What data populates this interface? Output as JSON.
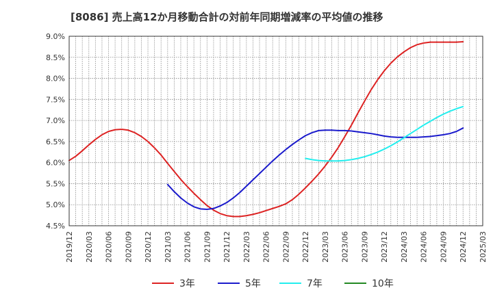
{
  "chart_data": {
    "type": "line",
    "title": "[8086]  売上高12か月移動合計の対前年同期増減率の平均値の推移",
    "xlabel": "",
    "ylabel": "",
    "x_ticks": [
      "2019/12",
      "2020/03",
      "2020/06",
      "2020/09",
      "2020/12",
      "2021/03",
      "2021/06",
      "2021/09",
      "2021/12",
      "2022/03",
      "2022/06",
      "2022/09",
      "2022/12",
      "2023/03",
      "2023/06",
      "2023/09",
      "2023/12",
      "2024/03",
      "2024/06",
      "2024/09",
      "2024/12",
      "2025/03"
    ],
    "y_ticks": [
      "4.5%",
      "5.0%",
      "5.5%",
      "6.0%",
      "6.5%",
      "7.0%",
      "7.5%",
      "8.0%",
      "8.5%",
      "9.0%"
    ],
    "ylim": [
      4.5,
      9.0
    ],
    "grid": true,
    "legend_position": "bottom",
    "series": [
      {
        "name": "3年",
        "color": "#dd2222",
        "x": [
          "2019/12",
          "2020/01",
          "2020/02",
          "2020/03",
          "2020/04",
          "2020/05",
          "2020/06",
          "2020/07",
          "2020/08",
          "2020/09",
          "2020/10",
          "2020/11",
          "2020/12",
          "2021/01",
          "2021/02",
          "2021/03",
          "2021/04",
          "2021/05",
          "2021/06",
          "2021/07",
          "2021/08",
          "2021/09",
          "2021/10",
          "2021/11",
          "2021/12",
          "2022/01",
          "2022/02",
          "2022/03",
          "2022/04",
          "2022/05",
          "2022/06",
          "2022/07",
          "2022/08",
          "2022/09",
          "2022/10",
          "2022/11",
          "2022/12",
          "2023/01",
          "2023/02",
          "2023/03",
          "2023/04",
          "2023/05",
          "2023/06",
          "2023/07",
          "2023/08",
          "2023/09",
          "2023/10",
          "2023/11",
          "2023/12",
          "2024/01",
          "2024/02",
          "2024/03",
          "2024/04",
          "2024/05",
          "2024/06",
          "2024/07",
          "2024/08",
          "2024/09",
          "2024/10",
          "2024/11",
          "2024/12"
        ],
        "values": [
          6.05,
          6.15,
          6.28,
          6.42,
          6.55,
          6.66,
          6.74,
          6.78,
          6.79,
          6.77,
          6.71,
          6.62,
          6.5,
          6.35,
          6.18,
          5.98,
          5.79,
          5.6,
          5.43,
          5.27,
          5.12,
          4.98,
          4.87,
          4.79,
          4.74,
          4.72,
          4.72,
          4.74,
          4.77,
          4.81,
          4.86,
          4.91,
          4.96,
          5.02,
          5.12,
          5.25,
          5.4,
          5.56,
          5.73,
          5.92,
          6.13,
          6.36,
          6.62,
          6.89,
          7.18,
          7.46,
          7.73,
          7.97,
          8.18,
          8.36,
          8.51,
          8.63,
          8.73,
          8.8,
          8.84,
          8.86,
          8.86,
          8.86,
          8.86,
          8.86,
          8.87
        ]
      },
      {
        "name": "5年",
        "color": "#1a1acc",
        "x": [
          "2021/03",
          "2021/04",
          "2021/05",
          "2021/06",
          "2021/07",
          "2021/08",
          "2021/09",
          "2021/10",
          "2021/11",
          "2021/12",
          "2022/01",
          "2022/02",
          "2022/03",
          "2022/04",
          "2022/05",
          "2022/06",
          "2022/07",
          "2022/08",
          "2022/09",
          "2022/10",
          "2022/11",
          "2022/12",
          "2023/01",
          "2023/02",
          "2023/03",
          "2023/04",
          "2023/05",
          "2023/06",
          "2023/07",
          "2023/08",
          "2023/09",
          "2023/10",
          "2023/11",
          "2023/12",
          "2024/01",
          "2024/02",
          "2024/03",
          "2024/04",
          "2024/05",
          "2024/06",
          "2024/07",
          "2024/08",
          "2024/09",
          "2024/10",
          "2024/11",
          "2024/12"
        ],
        "values": [
          5.48,
          5.31,
          5.16,
          5.04,
          4.95,
          4.9,
          4.89,
          4.91,
          4.97,
          5.05,
          5.16,
          5.29,
          5.44,
          5.59,
          5.74,
          5.89,
          6.04,
          6.18,
          6.31,
          6.43,
          6.54,
          6.64,
          6.71,
          6.76,
          6.77,
          6.77,
          6.76,
          6.76,
          6.75,
          6.73,
          6.71,
          6.69,
          6.66,
          6.63,
          6.61,
          6.6,
          6.6,
          6.6,
          6.6,
          6.61,
          6.62,
          6.64,
          6.66,
          6.69,
          6.74,
          6.82
        ]
      },
      {
        "name": "7年",
        "color": "#22eeee",
        "x": [
          "2022/12",
          "2023/01",
          "2023/02",
          "2023/03",
          "2023/04",
          "2023/05",
          "2023/06",
          "2023/07",
          "2023/08",
          "2023/09",
          "2023/10",
          "2023/11",
          "2023/12",
          "2024/01",
          "2024/02",
          "2024/03",
          "2024/04",
          "2024/05",
          "2024/06",
          "2024/07",
          "2024/08",
          "2024/09",
          "2024/10",
          "2024/11",
          "2024/12"
        ],
        "values": [
          6.1,
          6.07,
          6.05,
          6.04,
          6.04,
          6.04,
          6.05,
          6.07,
          6.1,
          6.14,
          6.19,
          6.25,
          6.32,
          6.4,
          6.49,
          6.59,
          6.69,
          6.79,
          6.89,
          6.98,
          7.07,
          7.15,
          7.22,
          7.28,
          7.33
        ]
      },
      {
        "name": "10年",
        "color": "#228822",
        "x": [],
        "values": []
      }
    ]
  }
}
